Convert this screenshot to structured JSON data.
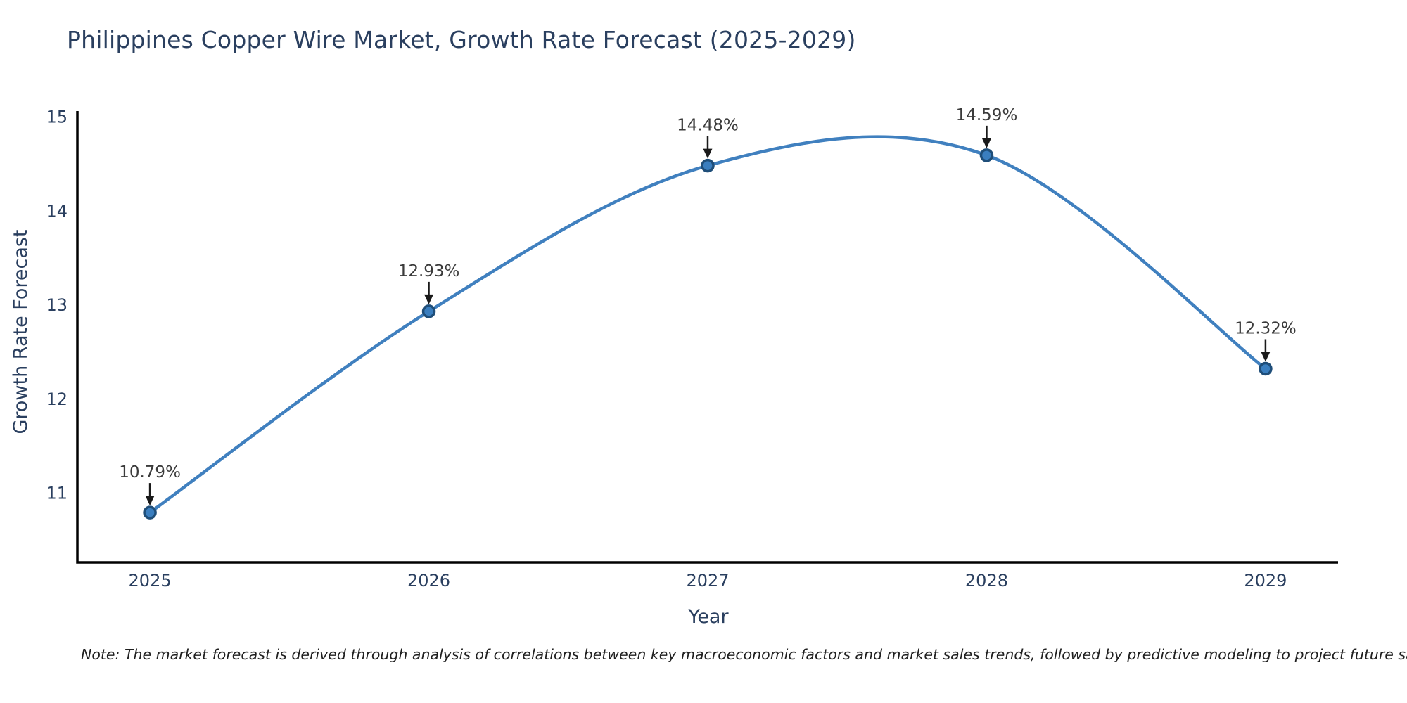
{
  "chart_data": {
    "type": "line",
    "title": "Philippines Copper Wire Market, Growth Rate Forecast (2025-2029)",
    "xlabel": "Year",
    "ylabel": "Growth Rate Forecast",
    "x": [
      2025,
      2026,
      2027,
      2028,
      2029
    ],
    "y": [
      10.79,
      12.93,
      14.48,
      14.59,
      12.32
    ],
    "point_labels": [
      "10.79%",
      "12.93%",
      "14.48%",
      "14.59%",
      "12.32%"
    ],
    "series": [
      {
        "name": "Growth Rate Forecast",
        "values": [
          10.79,
          12.93,
          14.48,
          14.59,
          12.32
        ]
      }
    ],
    "line_shape": "spline",
    "markers": true,
    "grid": false,
    "legend": false,
    "xlim": [
      2024.74,
      2029.26
    ],
    "ylim": [
      10.26,
      15.06
    ],
    "x_ticks": [
      "2025",
      "2026",
      "2027",
      "2028",
      "2029"
    ],
    "y_ticks": [
      11,
      12,
      13,
      14,
      15
    ],
    "note": "Note: The market forecast is derived through analysis of correlations between key macroeconomic factors and market sales trends, followed by predictive modeling to project future sales",
    "colors": {
      "line": "#4080bf",
      "marker_fill": "#3a7ebf",
      "marker_edge": "#1f4e79",
      "axis": "#000000",
      "tick_text": "#2a3f5f",
      "title_text": "#2a3f5f",
      "annotation_text": "#3b3b3b",
      "annotation_arrow": "#1a1a1a",
      "note_text": "#1f1f1f"
    }
  }
}
